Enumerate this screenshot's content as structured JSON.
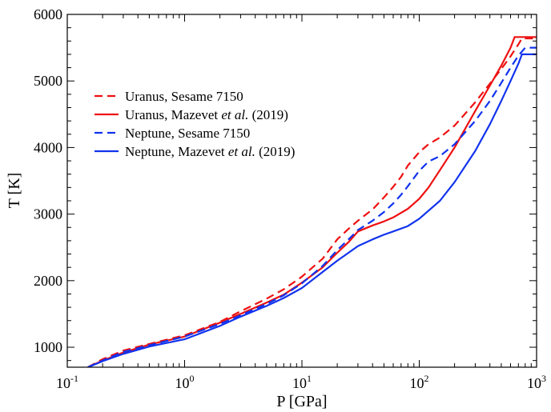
{
  "chart_data": {
    "type": "line",
    "xlabel": "P [GPa]",
    "ylabel": "T [K]",
    "xscale": "log",
    "xlim": [
      0.1,
      1000
    ],
    "ylim": [
      700,
      6000
    ],
    "x_ticks": [
      {
        "base": "10",
        "exp": "-1"
      },
      {
        "base": "10",
        "exp": "0"
      },
      {
        "base": "10",
        "exp": "1"
      },
      {
        "base": "10",
        "exp": "2"
      },
      {
        "base": "10",
        "exp": "3"
      }
    ],
    "y_ticks": [
      "1000",
      "2000",
      "3000",
      "4000",
      "5000",
      "6000"
    ],
    "legend_position": "upper-left",
    "series": [
      {
        "name": "Uranus, Sesame 7150",
        "legend": {
          "prefix": "Uranus, Sesame 7150",
          "italic": "",
          "suffix": ""
        },
        "color": "#ee1111",
        "style": "dashed",
        "points": [
          [
            0.15,
            700
          ],
          [
            0.2,
            820
          ],
          [
            0.3,
            950
          ],
          [
            0.5,
            1050
          ],
          [
            1,
            1180
          ],
          [
            2,
            1380
          ],
          [
            3,
            1540
          ],
          [
            5,
            1730
          ],
          [
            7,
            1870
          ],
          [
            10,
            2060
          ],
          [
            15,
            2330
          ],
          [
            20,
            2620
          ],
          [
            25,
            2780
          ],
          [
            30,
            2900
          ],
          [
            40,
            3070
          ],
          [
            50,
            3250
          ],
          [
            60,
            3410
          ],
          [
            70,
            3560
          ],
          [
            80,
            3730
          ],
          [
            100,
            3930
          ],
          [
            120,
            4050
          ],
          [
            150,
            4150
          ],
          [
            200,
            4330
          ],
          [
            300,
            4680
          ],
          [
            400,
            4960
          ],
          [
            500,
            5180
          ],
          [
            600,
            5370
          ],
          [
            700,
            5550
          ],
          [
            750,
            5640
          ],
          [
            1000,
            5640
          ]
        ]
      },
      {
        "name": "Uranus, Mazevet et al. (2019)",
        "legend": {
          "prefix": "Uranus, Mazevet ",
          "italic": "et al.",
          "suffix": " (2019)"
        },
        "color": "#ee1111",
        "style": "solid",
        "points": [
          [
            0.15,
            700
          ],
          [
            0.2,
            800
          ],
          [
            0.3,
            920
          ],
          [
            0.5,
            1040
          ],
          [
            1,
            1160
          ],
          [
            2,
            1370
          ],
          [
            3,
            1500
          ],
          [
            5,
            1670
          ],
          [
            7,
            1790
          ],
          [
            10,
            1970
          ],
          [
            15,
            2200
          ],
          [
            20,
            2420
          ],
          [
            25,
            2580
          ],
          [
            30,
            2740
          ],
          [
            40,
            2830
          ],
          [
            50,
            2890
          ],
          [
            60,
            2950
          ],
          [
            80,
            3080
          ],
          [
            100,
            3230
          ],
          [
            120,
            3400
          ],
          [
            150,
            3660
          ],
          [
            200,
            4000
          ],
          [
            300,
            4550
          ],
          [
            400,
            4930
          ],
          [
            500,
            5230
          ],
          [
            600,
            5500
          ],
          [
            650,
            5660
          ],
          [
            1000,
            5660
          ]
        ]
      },
      {
        "name": "Neptune, Sesame 7150",
        "legend": {
          "prefix": "Neptune, Sesame 7150",
          "italic": "",
          "suffix": ""
        },
        "color": "#1133ee",
        "style": "dashed",
        "points": [
          [
            0.15,
            700
          ],
          [
            0.2,
            800
          ],
          [
            0.3,
            930
          ],
          [
            0.5,
            1030
          ],
          [
            1,
            1160
          ],
          [
            2,
            1350
          ],
          [
            3,
            1480
          ],
          [
            5,
            1650
          ],
          [
            7,
            1780
          ],
          [
            10,
            1960
          ],
          [
            15,
            2220
          ],
          [
            20,
            2460
          ],
          [
            25,
            2620
          ],
          [
            30,
            2760
          ],
          [
            40,
            2900
          ],
          [
            50,
            3030
          ],
          [
            60,
            3160
          ],
          [
            70,
            3290
          ],
          [
            80,
            3420
          ],
          [
            100,
            3650
          ],
          [
            120,
            3790
          ],
          [
            150,
            3870
          ],
          [
            200,
            4050
          ],
          [
            300,
            4400
          ],
          [
            400,
            4700
          ],
          [
            500,
            4970
          ],
          [
            600,
            5200
          ],
          [
            700,
            5380
          ],
          [
            800,
            5500
          ],
          [
            1000,
            5500
          ]
        ]
      },
      {
        "name": "Neptune, Mazevet et al. (2019)",
        "legend": {
          "prefix": "Neptune, Mazevet ",
          "italic": "et al.",
          "suffix": " (2019)"
        },
        "color": "#1133ee",
        "style": "solid",
        "points": [
          [
            0.15,
            700
          ],
          [
            0.2,
            790
          ],
          [
            0.3,
            900
          ],
          [
            0.5,
            1010
          ],
          [
            1,
            1120
          ],
          [
            2,
            1320
          ],
          [
            3,
            1460
          ],
          [
            5,
            1620
          ],
          [
            7,
            1740
          ],
          [
            10,
            1890
          ],
          [
            15,
            2130
          ],
          [
            20,
            2300
          ],
          [
            25,
            2420
          ],
          [
            30,
            2520
          ],
          [
            40,
            2620
          ],
          [
            50,
            2690
          ],
          [
            60,
            2740
          ],
          [
            80,
            2820
          ],
          [
            100,
            2930
          ],
          [
            150,
            3200
          ],
          [
            200,
            3480
          ],
          [
            300,
            3950
          ],
          [
            400,
            4350
          ],
          [
            500,
            4700
          ],
          [
            600,
            5000
          ],
          [
            700,
            5260
          ],
          [
            750,
            5400
          ],
          [
            1000,
            5400
          ]
        ]
      }
    ]
  }
}
